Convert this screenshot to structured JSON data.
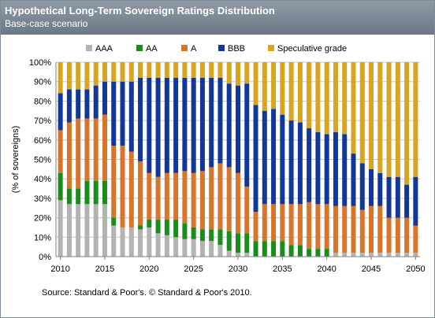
{
  "header": {
    "title": "Hypothetical Long-Term Sovereign Ratings Distribution",
    "subtitle": "Base-case scenario"
  },
  "source": "Source: Standard & Poor's. © Standard & Poor's 2010.",
  "chart_data": {
    "type": "bar",
    "stacked": true,
    "title": "Hypothetical Long-Term Sovereign Ratings Distribution",
    "subtitle": "Base-case scenario",
    "ylabel": "(% of sovereigns)",
    "xlabel": "",
    "ylim": [
      0,
      100
    ],
    "yticks": [
      "0%",
      "10%",
      "20%",
      "30%",
      "40%",
      "50%",
      "60%",
      "70%",
      "80%",
      "90%",
      "100%"
    ],
    "xticks": [
      "2010",
      "2015",
      "2020",
      "2025",
      "2030",
      "2035",
      "2040",
      "2045",
      "2050"
    ],
    "legend_position": "top",
    "grid": "horizontal",
    "categories": [
      2010,
      2011,
      2012,
      2013,
      2014,
      2015,
      2016,
      2017,
      2018,
      2019,
      2020,
      2021,
      2022,
      2023,
      2024,
      2025,
      2026,
      2027,
      2028,
      2029,
      2030,
      2031,
      2032,
      2033,
      2034,
      2035,
      2036,
      2037,
      2038,
      2039,
      2040,
      2041,
      2042,
      2043,
      2044,
      2045,
      2046,
      2047,
      2048,
      2049,
      2050
    ],
    "series": [
      {
        "name": "AAA",
        "color": "#b3b3b3",
        "values": [
          29,
          27,
          27,
          27,
          27,
          27,
          16,
          15,
          15,
          14,
          15,
          12,
          11,
          10,
          9,
          9,
          8,
          8,
          6,
          3,
          2,
          2,
          0,
          0,
          0,
          0,
          0,
          0,
          0,
          0,
          0,
          2,
          2,
          2,
          2,
          2,
          2,
          2,
          2,
          2,
          2
        ]
      },
      {
        "name": "AA",
        "color": "#1a8c1a",
        "values": [
          14,
          8,
          8,
          12,
          12,
          12,
          4,
          0,
          0,
          2,
          4,
          7,
          8,
          9,
          8,
          6,
          6,
          6,
          8,
          10,
          10,
          10,
          8,
          8,
          8,
          8,
          6,
          6,
          4,
          4,
          4,
          0,
          0,
          0,
          0,
          0,
          0,
          0,
          0,
          0,
          0
        ]
      },
      {
        "name": "A",
        "color": "#d9742b",
        "values": [
          22,
          34,
          36,
          32,
          32,
          34,
          37,
          42,
          39,
          33,
          24,
          22,
          24,
          24,
          27,
          28,
          30,
          32,
          34,
          33,
          31,
          24,
          15,
          19,
          19,
          19,
          21,
          21,
          24,
          23,
          23,
          24,
          24,
          24,
          22,
          24,
          24,
          18,
          18,
          18,
          14
        ]
      },
      {
        "name": "BBB",
        "color": "#12379a",
        "values": [
          19,
          17,
          15,
          15,
          17,
          17,
          33,
          33,
          36,
          43,
          49,
          51,
          49,
          49,
          48,
          49,
          48,
          46,
          44,
          43,
          45,
          53,
          55,
          48,
          49,
          46,
          43,
          42,
          38,
          37,
          36,
          38,
          37,
          27,
          24,
          19,
          17,
          21,
          21,
          17,
          25
        ]
      },
      {
        "name": "Speculative grade",
        "color": "#d9a520",
        "values": [
          16,
          14,
          14,
          14,
          12,
          10,
          10,
          10,
          10,
          8,
          8,
          8,
          8,
          8,
          8,
          8,
          8,
          8,
          8,
          11,
          12,
          11,
          22,
          25,
          24,
          27,
          30,
          31,
          34,
          36,
          37,
          36,
          37,
          47,
          52,
          55,
          57,
          59,
          59,
          63,
          59
        ]
      }
    ]
  }
}
